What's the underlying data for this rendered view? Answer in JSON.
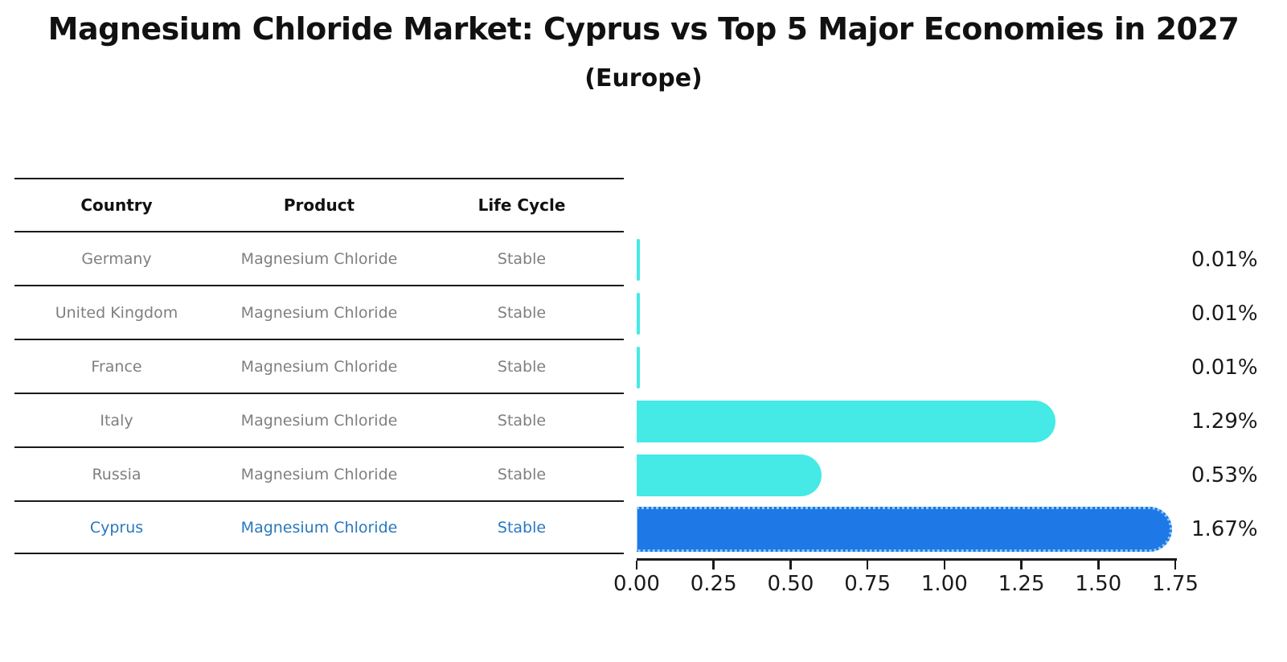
{
  "title": "Magnesium Chloride Market: Cyprus vs Top 5 Major Economies in 2027",
  "subtitle": "(Europe)",
  "table": {
    "headers": [
      "Country",
      "Product",
      "Life Cycle"
    ],
    "rows": [
      {
        "country": "Germany",
        "product": "Magnesium Chloride",
        "life_cycle": "Stable",
        "highlight": false
      },
      {
        "country": "United Kingdom",
        "product": "Magnesium Chloride",
        "life_cycle": "Stable",
        "highlight": false
      },
      {
        "country": "France",
        "product": "Magnesium Chloride",
        "life_cycle": "Stable",
        "highlight": false
      },
      {
        "country": "Italy",
        "product": "Magnesium Chloride",
        "life_cycle": "Stable",
        "highlight": false
      },
      {
        "country": "Russia",
        "product": "Magnesium Chloride",
        "life_cycle": "Stable",
        "highlight": false
      },
      {
        "country": "Cyprus",
        "product": "Magnesium Chloride",
        "life_cycle": "Stable",
        "highlight": true
      }
    ]
  },
  "chart_data": {
    "type": "bar",
    "orientation": "horizontal",
    "title": "Magnesium Chloride Market: Cyprus vs Top 5 Major Economies in 2027",
    "subtitle": "(Europe)",
    "categories": [
      "Germany",
      "United Kingdom",
      "France",
      "Italy",
      "Russia",
      "Cyprus"
    ],
    "values": [
      0.01,
      0.01,
      0.01,
      1.29,
      0.53,
      1.67
    ],
    "value_labels": [
      "0.01%",
      "0.01%",
      "0.01%",
      "1.29%",
      "0.53%",
      "1.67%"
    ],
    "x_ticks": [
      "0.00",
      "0.25",
      "0.50",
      "0.75",
      "1.00",
      "1.25",
      "1.50",
      "1.75"
    ],
    "xlim": [
      0,
      1.75
    ],
    "xlabel": "",
    "ylabel": "",
    "grid": false,
    "legend": null,
    "highlight_category": "Cyprus"
  },
  "colors": {
    "bar": "#45e9e5",
    "highlight_bar": "#1e78e6",
    "highlight_border": "#8ec9f7",
    "link": "#2878be",
    "muted": "#7f7f7f",
    "line": "#1a1a1a",
    "text": "#111111",
    "bg": "#ffffff"
  }
}
